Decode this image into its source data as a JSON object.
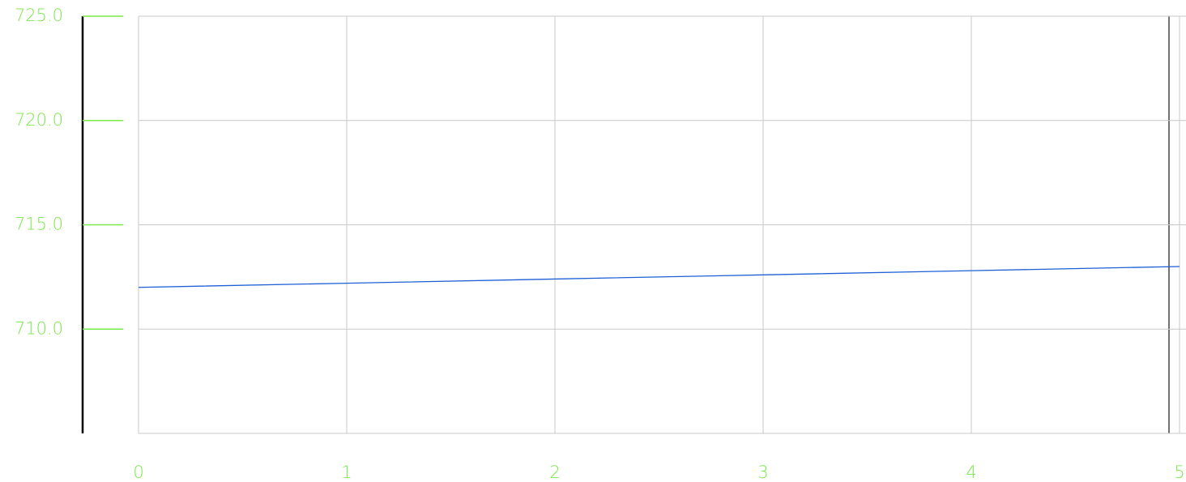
{
  "chart_data": {
    "type": "line",
    "x": [
      0,
      1,
      2,
      3,
      4,
      5
    ],
    "series": [
      {
        "color": "#1f5fd6",
        "values": [
          712.0,
          712.2,
          712.4,
          712.6,
          712.8,
          713.0
        ]
      }
    ],
    "xlim": [
      0,
      5
    ],
    "xticks": [
      0,
      1,
      2,
      3,
      4,
      5
    ],
    "ylim": [
      705,
      725
    ],
    "yticks": [
      {
        "value": 710,
        "label": "710.0"
      },
      {
        "value": 715,
        "label": "715.0"
      },
      {
        "value": 720,
        "label": "720.0"
      },
      {
        "value": 725,
        "label": "725.0"
      }
    ],
    "grid": true
  }
}
